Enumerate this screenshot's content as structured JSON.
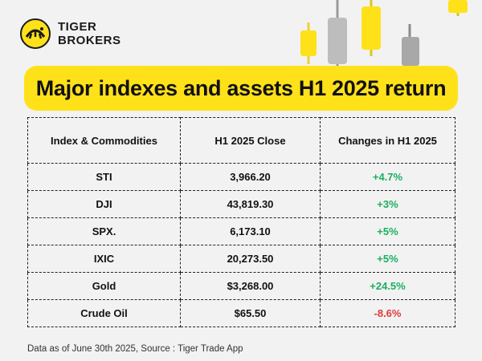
{
  "brand": {
    "line1": "TIGER",
    "line2": "BROKERS",
    "colors": {
      "accent": "#ffe11a",
      "dark": "#1a1a1a",
      "gray": "#b3b3b3"
    }
  },
  "banner": {
    "title": "Major indexes and assets H1 2025 return"
  },
  "table": {
    "headers": [
      "Index & Commodities",
      "H1 2025 Close",
      "Changes in H1 2025"
    ],
    "rows": [
      {
        "name": "STI",
        "close": "3,966.20",
        "change": "+4.7%",
        "dir": "pos"
      },
      {
        "name": "DJI",
        "close": "43,819.30",
        "change": "+3%",
        "dir": "pos"
      },
      {
        "name": "SPX.",
        "close": "6,173.10",
        "change": "+5%",
        "dir": "pos"
      },
      {
        "name": "IXIC",
        "close": "20,273.50",
        "change": "+5%",
        "dir": "pos"
      },
      {
        "name": "Gold",
        "close": "$3,268.00",
        "change": "+24.5%",
        "dir": "pos"
      },
      {
        "name": "Crude Oil",
        "close": "$65.50",
        "change": "-8.6%",
        "dir": "neg"
      }
    ],
    "colors": {
      "positive": "#19b060",
      "negative": "#e23a3a"
    }
  },
  "footnote": "Data as of June 30th 2025, Source : Tiger Trade App"
}
